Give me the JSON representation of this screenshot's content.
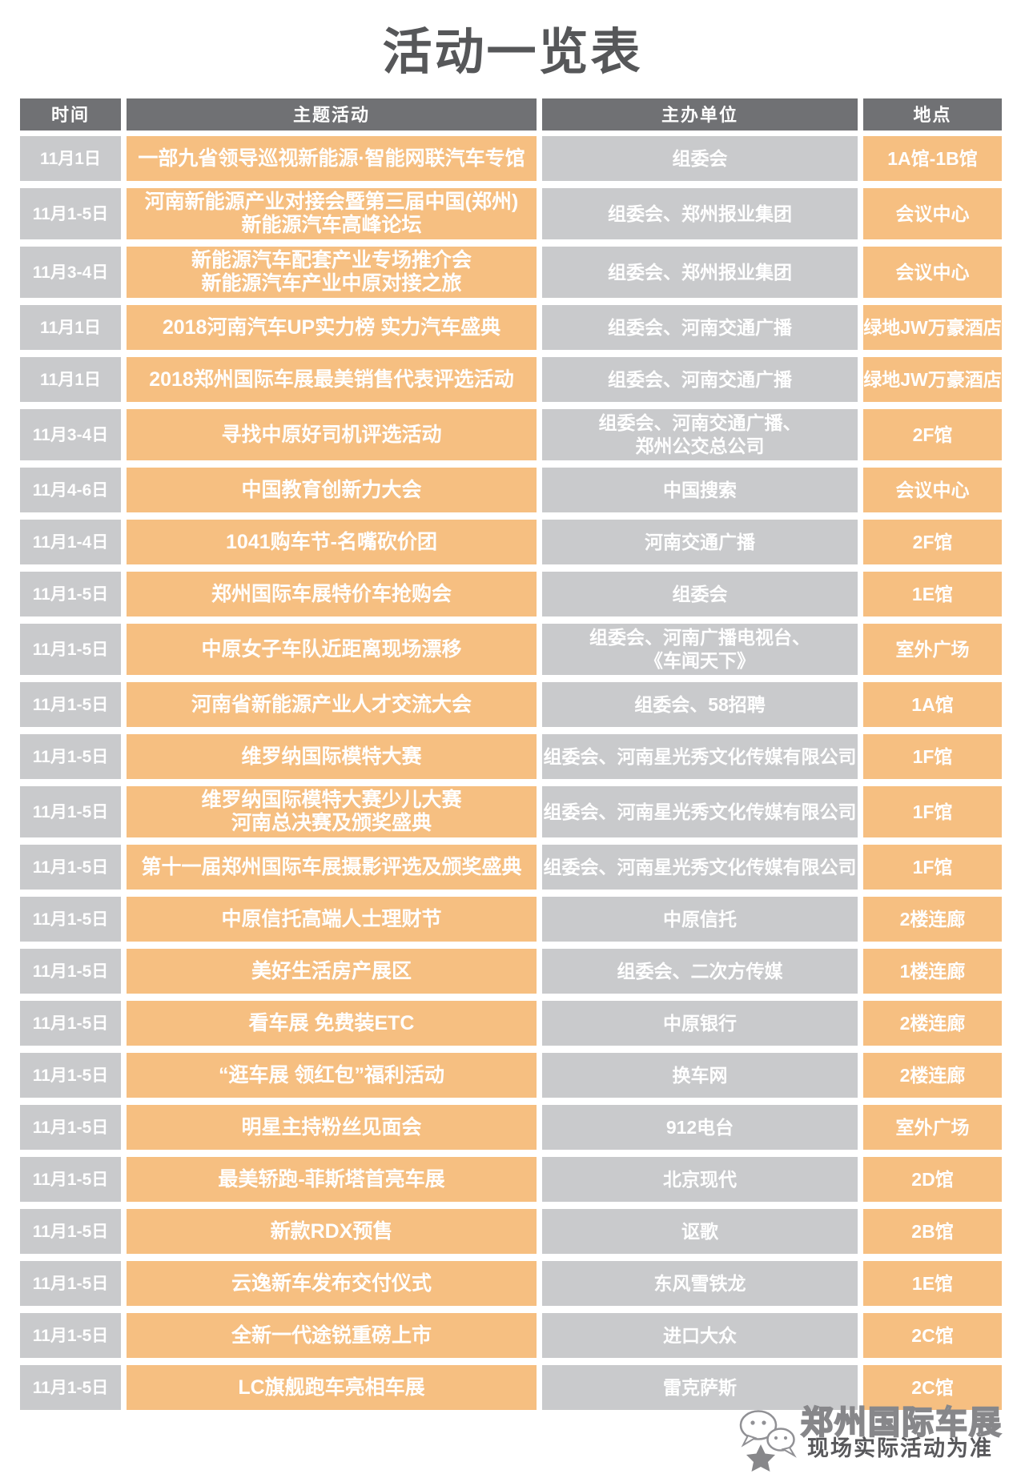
{
  "title": "活动一览表",
  "columns": [
    "时间",
    "主题活动",
    "主办单位",
    "地点"
  ],
  "rows": [
    {
      "time": "11月1日",
      "activity": "一部九省领导巡视新能源·智能网联汽车专馆",
      "organizer": "组委会",
      "location": "1A馆-1B馆",
      "tall": false
    },
    {
      "time": "11月1-5日",
      "activity": "河南新能源产业对接会暨第三届中国(郑州)\n新能源汽车高峰论坛",
      "organizer": "组委会、郑州报业集团",
      "location": "会议中心",
      "tall": true
    },
    {
      "time": "11月3-4日",
      "activity": "新能源汽车配套产业专场推介会\n新能源汽车产业中原对接之旅",
      "organizer": "组委会、郑州报业集团",
      "location": "会议中心",
      "tall": true
    },
    {
      "time": "11月1日",
      "activity": "2018河南汽车UP实力榜 实力汽车盛典",
      "organizer": "组委会、河南交通广播",
      "location": "绿地JW万豪酒店",
      "tall": false
    },
    {
      "time": "11月1日",
      "activity": "2018郑州国际车展最美销售代表评选活动",
      "organizer": "组委会、河南交通广播",
      "location": "绿地JW万豪酒店",
      "tall": false
    },
    {
      "time": "11月3-4日",
      "activity": "寻找中原好司机评选活动",
      "organizer": "组委会、河南交通广播、\n郑州公交总公司",
      "location": "2F馆",
      "tall": true
    },
    {
      "time": "11月4-6日",
      "activity": "中国教育创新力大会",
      "organizer": "中国搜索",
      "location": "会议中心",
      "tall": false
    },
    {
      "time": "11月1-4日",
      "activity": "1041购车节-名嘴砍价团",
      "organizer": "河南交通广播",
      "location": "2F馆",
      "tall": false
    },
    {
      "time": "11月1-5日",
      "activity": "郑州国际车展特价车抢购会",
      "organizer": "组委会",
      "location": "1E馆",
      "tall": false
    },
    {
      "time": "11月1-5日",
      "activity": "中原女子车队近距离现场漂移",
      "organizer": "组委会、河南广播电视台、\n《车闻天下》",
      "location": "室外广场",
      "tall": true
    },
    {
      "time": "11月1-5日",
      "activity": "河南省新能源产业人才交流大会",
      "organizer": "组委会、58招聘",
      "location": "1A馆",
      "tall": false
    },
    {
      "time": "11月1-5日",
      "activity": "维罗纳国际模特大赛",
      "organizer": "组委会、河南星光秀文化传媒有限公司",
      "location": "1F馆",
      "tall": false
    },
    {
      "time": "11月1-5日",
      "activity": "维罗纳国际模特大赛少儿大赛\n河南总决赛及颁奖盛典",
      "organizer": "组委会、河南星光秀文化传媒有限公司",
      "location": "1F馆",
      "tall": true
    },
    {
      "time": "11月1-5日",
      "activity": "第十一届郑州国际车展摄影评选及颁奖盛典",
      "organizer": "组委会、河南星光秀文化传媒有限公司",
      "location": "1F馆",
      "tall": false
    },
    {
      "time": "11月1-5日",
      "activity": "中原信托高端人士理财节",
      "organizer": "中原信托",
      "location": "2楼连廊",
      "tall": false
    },
    {
      "time": "11月1-5日",
      "activity": "美好生活房产展区",
      "organizer": "组委会、二次方传媒",
      "location": "1楼连廊",
      "tall": false
    },
    {
      "time": "11月1-5日",
      "activity": "看车展 免费装ETC",
      "organizer": "中原银行",
      "location": "2楼连廊",
      "tall": false
    },
    {
      "time": "11月1-5日",
      "activity": "“逛车展 领红包”福利活动",
      "organizer": "换车网",
      "location": "2楼连廊",
      "tall": false
    },
    {
      "time": "11月1-5日",
      "activity": "明星主持粉丝见面会",
      "organizer": "912电台",
      "location": "室外广场",
      "tall": false
    },
    {
      "time": "11月1-5日",
      "activity": "最美轿跑-菲斯塔首亮车展",
      "organizer": "北京现代",
      "location": "2D馆",
      "tall": false
    },
    {
      "time": "11月1-5日",
      "activity": "新款RDX预售",
      "organizer": "讴歌",
      "location": "2B馆",
      "tall": false
    },
    {
      "time": "11月1-5日",
      "activity": "云逸新车发布交付仪式",
      "organizer": "东风雪铁龙",
      "location": "1E馆",
      "tall": false
    },
    {
      "time": "11月1-5日",
      "activity": "全新一代途锐重磅上市",
      "organizer": "进口大众",
      "location": "2C馆",
      "tall": false
    },
    {
      "time": "11月1-5日",
      "activity": "LC旗舰跑车亮相车展",
      "organizer": "雷克萨斯",
      "location": "2C馆",
      "tall": false
    }
  ],
  "footer": {
    "brand": "郑州国际车展",
    "note": "现场实际活动为准"
  },
  "colors": {
    "orange": "#f6bf81",
    "gray_cell": "#c9cacc",
    "header_gray": "#707174",
    "title_color": "#565759",
    "footer_gray": "#87878a"
  }
}
